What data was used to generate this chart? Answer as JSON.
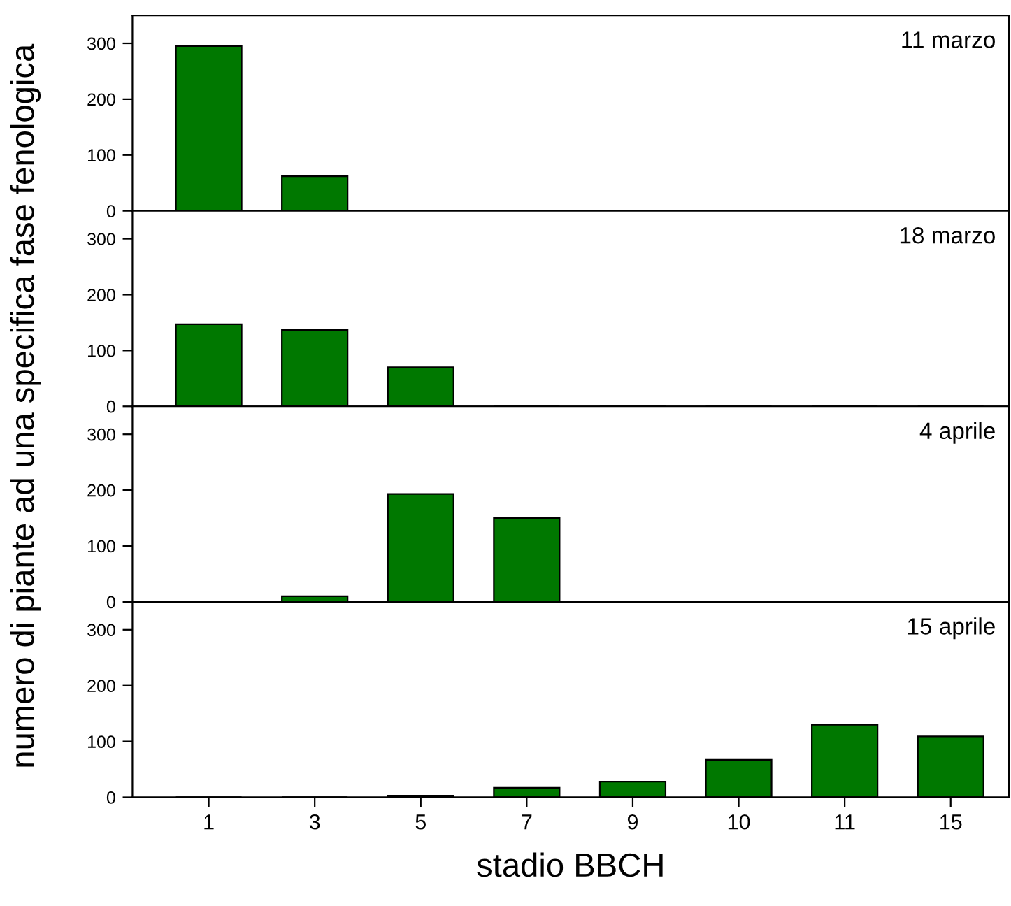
{
  "chart_data": [
    {
      "type": "bar",
      "categories": [
        "1",
        "3",
        "5",
        "7",
        "9",
        "10",
        "11",
        "15"
      ],
      "values": [
        295,
        62,
        0,
        0,
        0,
        0,
        0,
        0
      ],
      "color": "#007800",
      "ylim": [
        0,
        350
      ],
      "yticks": [
        0,
        100,
        200,
        300
      ],
      "annotations": [
        "11 marzo"
      ],
      "ylabel": "numero di piante ad una specifica fase fenologica",
      "tick_labels": "y"
    },
    {
      "type": "bar",
      "categories": [
        "1",
        "3",
        "5",
        "7",
        "9",
        "10",
        "11",
        "15"
      ],
      "values": [
        147,
        137,
        70,
        0,
        0,
        0,
        0,
        0
      ],
      "color": "#007800",
      "ylim": [
        0,
        350
      ],
      "yticks": [
        0,
        100,
        200,
        300
      ],
      "annotations": [
        "18 marzo"
      ],
      "tick_labels": "y"
    },
    {
      "type": "bar",
      "categories": [
        "1",
        "3",
        "5",
        "7",
        "9",
        "10",
        "11",
        "15"
      ],
      "values": [
        0,
        10,
        193,
        150,
        0,
        0,
        0,
        0
      ],
      "color": "#007800",
      "ylim": [
        0,
        350
      ],
      "yticks": [
        0,
        100,
        200,
        300
      ],
      "annotations": [
        "4 aprile"
      ],
      "tick_labels": "y"
    },
    {
      "type": "bar",
      "categories": [
        "1",
        "3",
        "5",
        "7",
        "9",
        "10",
        "11",
        "15"
      ],
      "values": [
        0,
        0,
        3,
        17,
        28,
        67,
        130,
        109
      ],
      "color": "#007800",
      "ylim": [
        0,
        350
      ],
      "yticks": [
        0,
        100,
        200,
        300
      ],
      "annotations": [
        "15 aprile"
      ],
      "xlabel": "stadio BBCH"
    }
  ]
}
